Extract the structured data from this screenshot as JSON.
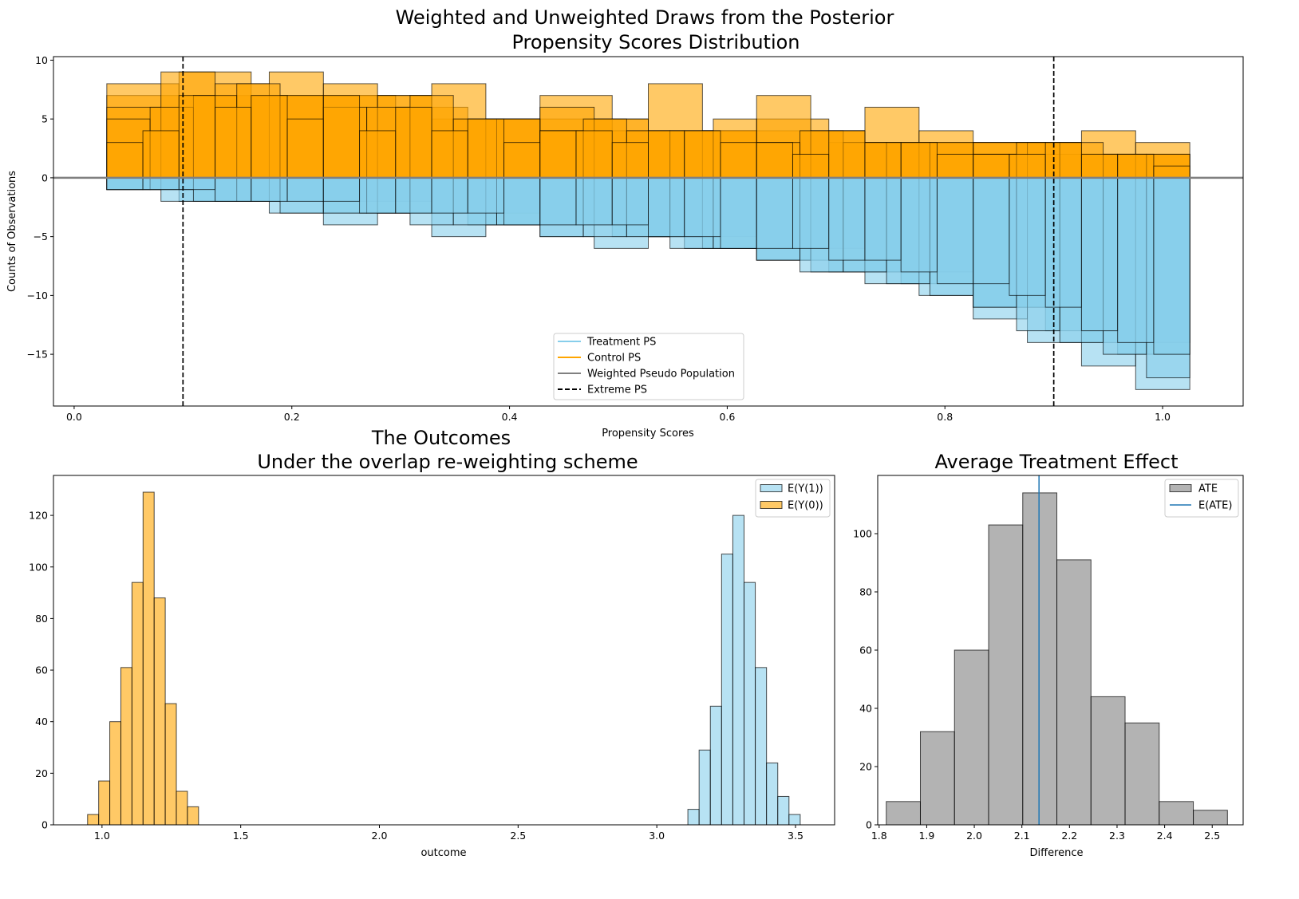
{
  "figure": {
    "title_line1": "Weighted and Unweighted Draws from the Posterior",
    "title_line2": "Propensity Scores Distribution"
  },
  "chart_data": [
    {
      "type": "bar",
      "subtype": "overlaid histograms (posterior draws, mirrored)",
      "title": "",
      "xlabel": "Propensity Scores",
      "ylabel": "Counts of Observations",
      "xlim": [
        -0.019,
        1.074
      ],
      "ylim": [
        -19.4,
        10.3
      ],
      "grid": false,
      "xticks": [
        0.0,
        0.2,
        0.4,
        0.6,
        0.8,
        1.0
      ],
      "xtick_labels": [
        "0.0",
        "0.2",
        "0.4",
        "0.6",
        "0.8",
        "1.0"
      ],
      "yticks": [
        -15,
        -10,
        -5,
        0,
        5,
        10
      ],
      "ytick_labels": [
        "−15",
        "−10",
        "−5",
        "0",
        "5",
        "10"
      ],
      "bin_range": [
        0.03,
        1.025
      ],
      "series": [
        {
          "name": "Control PS",
          "color": "#FFA500",
          "draws": [
            [
              7,
              7,
              7,
              5,
              5,
              4,
              4,
              3,
              3,
              2
            ],
            [
              8,
              9,
              7,
              7,
              6,
              5,
              7,
              4,
              4,
              5,
              3,
              3,
              3,
              2,
              2
            ],
            [
              6,
              9,
              8,
              9,
              8,
              7,
              8,
              5,
              6,
              5,
              8,
              4,
              7,
              4,
              6,
              4,
              3,
              3,
              4,
              3
            ],
            [
              5,
              6,
              7,
              8,
              7,
              6,
              6,
              7,
              5,
              5,
              4,
              5,
              4,
              4,
              5,
              3,
              4,
              3,
              3,
              3,
              2,
              3,
              3,
              2,
              2
            ],
            [
              3,
              4,
              7,
              6,
              7,
              5,
              7,
              4,
              6,
              4,
              5,
              3,
              4,
              4,
              3,
              4,
              4,
              3,
              3,
              2,
              4,
              3,
              3,
              2,
              2,
              2,
              3,
              2,
              2,
              1
            ]
          ]
        },
        {
          "name": "Treatment PS",
          "color": "#87CEEB",
          "draws": [
            [
              -1,
              -2,
              -2,
              -3,
              -4,
              -5,
              -6,
              -8,
              -11,
              -14
            ],
            [
              -1,
              -2,
              -2,
              -3,
              -3,
              -4,
              -4,
              -5,
              -6,
              -7,
              -8,
              -9,
              -11,
              -13,
              -15
            ],
            [
              -1,
              -2,
              -2,
              -3,
              -4,
              -3,
              -5,
              -4,
              -5,
              -6,
              -5,
              -6,
              -7,
              -8,
              -9,
              -10,
              -12,
              -14,
              -16,
              -18
            ],
            [
              -1,
              -1,
              -2,
              -2,
              -3,
              -3,
              -3,
              -4,
              -4,
              -4,
              -5,
              -5,
              -5,
              -6,
              -6,
              -7,
              -8,
              -8,
              -9,
              -10,
              -11,
              -13,
              -14,
              -15,
              -17
            ],
            [
              -1,
              -1,
              -1,
              -2,
              -2,
              -2,
              -2,
              -3,
              -3,
              -3,
              -3,
              -4,
              -4,
              -4,
              -4,
              -5,
              -5,
              -6,
              -6,
              -6,
              -7,
              -7,
              -8,
              -9,
              -9,
              -10,
              -11,
              -13,
              -14,
              -15
            ]
          ]
        }
      ],
      "weighted_pseudo_population": {
        "name": "Weighted Pseudo Population",
        "color": "#808080",
        "value": 0
      },
      "reference_lines": {
        "name": "Extreme PS",
        "color": "#000000",
        "style": "dashed",
        "x": [
          0.1,
          0.9
        ]
      },
      "legend": {
        "placement": "lower-center",
        "entries": [
          "Treatment PS",
          "Control PS",
          "Weighted Pseudo Population",
          "Extreme PS"
        ]
      }
    },
    {
      "type": "bar",
      "subtype": "histogram",
      "title_line1": "The Outcomes",
      "title_line2": "Under the overlap re-weighting scheme",
      "xlabel": "outcome",
      "ylabel": "",
      "xlim": [
        0.825,
        3.641
      ],
      "ylim": [
        0,
        135.5
      ],
      "grid": false,
      "xticks": [
        1.0,
        1.5,
        2.0,
        2.5,
        3.0,
        3.5
      ],
      "xtick_labels": [
        "1.0",
        "1.5",
        "2.0",
        "2.5",
        "3.0",
        "3.5"
      ],
      "yticks": [
        0,
        20,
        40,
        60,
        80,
        100,
        120
      ],
      "ytick_labels": [
        "0",
        "20",
        "40",
        "60",
        "80",
        "100",
        "120"
      ],
      "series": [
        {
          "name": "E(Y(1))",
          "color": "#87CEEB",
          "bin_start": 3.112,
          "bin_width": 0.0405,
          "values": [
            6,
            29,
            46,
            105,
            120,
            94,
            61,
            24,
            11,
            4
          ]
        },
        {
          "name": "E(Y(0))",
          "color": "#FFA500",
          "bin_start": 0.948,
          "bin_width": 0.04,
          "values": [
            4,
            17,
            40,
            61,
            94,
            129,
            88,
            47,
            13,
            7
          ]
        }
      ],
      "legend": {
        "placement": "top-right",
        "entries": [
          "E(Y(1))",
          "E(Y(0))"
        ]
      }
    },
    {
      "type": "bar",
      "subtype": "histogram",
      "title": "Average Treatment Effect",
      "xlabel": "Difference",
      "ylabel": "",
      "xlim": [
        1.797,
        2.565
      ],
      "ylim": [
        0,
        120
      ],
      "grid": false,
      "xticks": [
        1.8,
        1.9,
        2.0,
        2.1,
        2.2,
        2.3,
        2.4,
        2.5
      ],
      "xtick_labels": [
        "1.8",
        "1.9",
        "2.0",
        "2.1",
        "2.2",
        "2.3",
        "2.4",
        "2.5"
      ],
      "yticks": [
        0,
        20,
        40,
        60,
        80,
        100
      ],
      "ytick_labels": [
        "0",
        "20",
        "40",
        "60",
        "80",
        "100"
      ],
      "series": [
        {
          "name": "ATE",
          "color": "#808080",
          "bin_start": 1.815,
          "bin_width": 0.0717,
          "values": [
            8,
            32,
            60,
            103,
            114,
            91,
            44,
            35,
            8,
            5
          ]
        }
      ],
      "mean_line": {
        "name": "E(ATE)",
        "color": "#1f77b4",
        "x": 2.136
      },
      "legend": {
        "placement": "top-right",
        "entries": [
          "ATE",
          "E(ATE)"
        ]
      }
    }
  ]
}
